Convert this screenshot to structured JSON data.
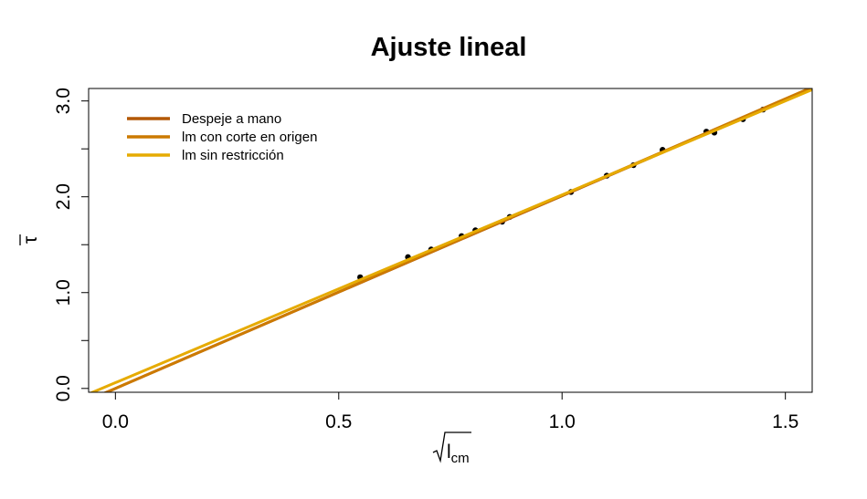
{
  "chart_data": {
    "type": "scatter",
    "title": "Ajuste lineal",
    "xlabel": {
      "base": "l",
      "sub": "cm"
    },
    "ylabel": "τ",
    "xlim": [
      -0.06,
      1.56
    ],
    "ylim": [
      -0.04,
      3.13
    ],
    "x_ticks": [
      0.0,
      0.5,
      1.0,
      1.5
    ],
    "x_tick_labels": [
      "0.0",
      "0.5",
      "1.0",
      "1.5"
    ],
    "y_ticks": [
      0.0,
      0.5,
      1.0,
      1.5,
      2.0,
      2.5,
      3.0
    ],
    "y_tick_labels": [
      "0.0",
      "",
      "1.0",
      "",
      "2.0",
      "",
      "3.0"
    ],
    "grid": false,
    "legend_position": "top-left",
    "points": {
      "x": [
        0.548,
        0.655,
        0.707,
        0.775,
        0.806,
        0.866,
        0.883,
        1.02,
        1.1,
        1.16,
        1.225,
        1.323,
        1.341,
        1.405,
        1.45
      ],
      "y": [
        1.16,
        1.37,
        1.45,
        1.59,
        1.65,
        1.74,
        1.79,
        2.05,
        2.22,
        2.33,
        2.49,
        2.68,
        2.67,
        2.81,
        2.91
      ]
    },
    "series": [
      {
        "name": "Despeje a mano",
        "color": "#B35806",
        "intercept": 0.0,
        "slope": 2.01
      },
      {
        "name": "lm con corte en origen",
        "color": "#CC7A00",
        "intercept": 0.0,
        "slope": 2.015
      },
      {
        "name": "lm sin restricción",
        "color": "#E6AB02",
        "intercept": 0.06,
        "slope": 1.96
      }
    ]
  }
}
